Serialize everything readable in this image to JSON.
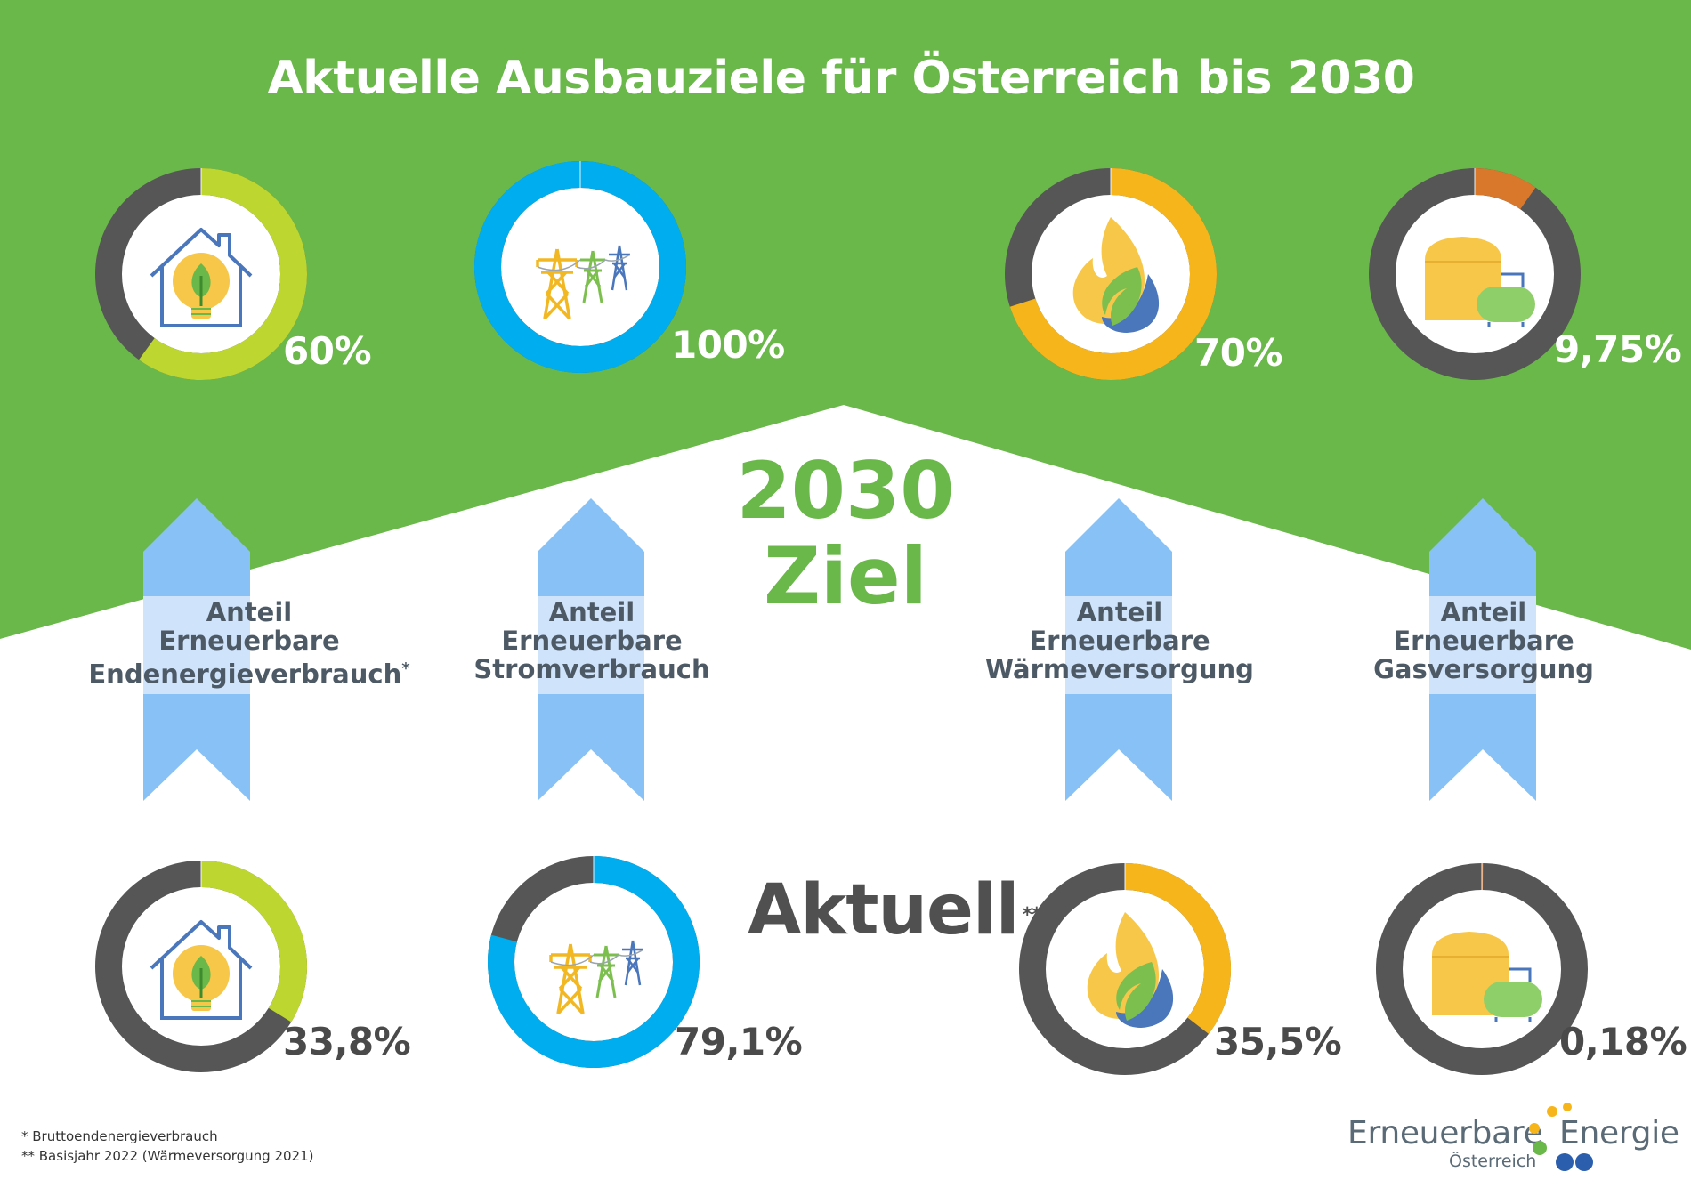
{
  "title": "Aktuelle Ausbauziele für Österreich bis 2030",
  "center": {
    "year": "2030",
    "label": "Ziel"
  },
  "aktuell": {
    "label": "Aktuell",
    "mark": "**"
  },
  "colors": {
    "green_bg": "#6ab84a",
    "ring_gray": "#565656",
    "arrow_blue": "#88c1f6",
    "band_light": "#cfe3fb",
    "lime": "#bed630",
    "cyan": "#00adee",
    "amber": "#f6b51b",
    "orange": "#d9782a"
  },
  "categories": [
    {
      "id": "endenergie",
      "lines": [
        "Anteil",
        "Erneuerbare",
        "Endenergieverbrauch"
      ],
      "mark": "*",
      "icon": "house-bulb-icon",
      "accent": "#bed630",
      "target_label": "60%",
      "current_label": "33,8%"
    },
    {
      "id": "strom",
      "lines": [
        "Anteil",
        "Erneuerbare",
        "Stromverbrauch"
      ],
      "mark": "",
      "icon": "power-pylon-icon",
      "accent": "#00adee",
      "target_label": "100%",
      "current_label": "79,1%"
    },
    {
      "id": "waerme",
      "lines": [
        "Anteil",
        "Erneuerbare",
        "Wärmeversorgung"
      ],
      "mark": "",
      "icon": "flame-icon",
      "accent": "#f6b51b",
      "target_label": "70%",
      "current_label": "35,5%"
    },
    {
      "id": "gas",
      "lines": [
        "Anteil",
        "Erneuerbare",
        "Gasversorgung"
      ],
      "mark": "",
      "icon": "gas-tank-icon",
      "accent": "#d9782a",
      "target_label": "9,75%",
      "current_label": "0,18%"
    }
  ],
  "chart_data": {
    "type": "pie",
    "title": "Aktuelle Ausbauziele für Österreich bis 2030",
    "categories": [
      "Anteil Erneuerbare Endenergieverbrauch",
      "Anteil Erneuerbare Stromverbrauch",
      "Anteil Erneuerbare Wärmeversorgung",
      "Anteil Erneuerbare Gasversorgung"
    ],
    "series": [
      {
        "name": "2030 Ziel",
        "values": [
          60,
          100,
          70,
          9.75
        ]
      },
      {
        "name": "Aktuell",
        "values": [
          33.8,
          79.1,
          35.5,
          0.18
        ]
      }
    ],
    "unit": "%"
  },
  "footnotes": [
    "*  Bruttoendenergieverbrauch",
    "** Basisjahr 2022 (Wärmeversorgung 2021)"
  ],
  "logo": {
    "word1": "Erneuerbare",
    "word2": "Energie",
    "sub": "Österreich"
  }
}
